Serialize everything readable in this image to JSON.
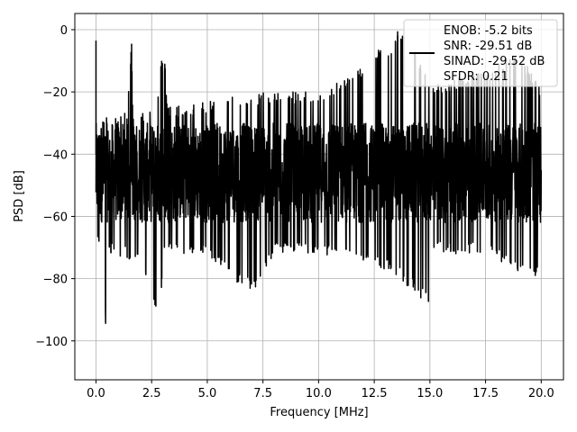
{
  "chart_data": {
    "type": "line",
    "title": "",
    "xlabel": "Frequency [MHz]",
    "ylabel": "PSD [dB]",
    "xlim": [
      -0.95,
      21.0
    ],
    "ylim": [
      -112.5,
      5.2
    ],
    "xticks": [
      0.0,
      2.5,
      5.0,
      7.5,
      10.0,
      12.5,
      15.0,
      17.5,
      20.0
    ],
    "xtick_labels": [
      "0.0",
      "2.5",
      "5.0",
      "7.5",
      "10.0",
      "12.5",
      "15.0",
      "17.5",
      "20.0"
    ],
    "yticks": [
      0,
      -20,
      -40,
      -60,
      -80,
      -100
    ],
    "ytick_labels": [
      "0",
      "−20",
      "−40",
      "−60",
      "−80",
      "−100"
    ],
    "grid": true,
    "legend": {
      "position": "top-right",
      "entries": [
        "ENOB: -5.2 bits",
        "SNR: -29.51 dB",
        "SINAD: -29.52 dB",
        "SFDR: 0.21"
      ]
    },
    "series": [
      {
        "color": "#000000",
        "upper_envelope": [
          [
            0.0,
            -3.5
          ],
          [
            0.1,
            -28
          ],
          [
            0.5,
            -27
          ],
          [
            1.0,
            -27
          ],
          [
            1.4,
            -26
          ],
          [
            1.45,
            -18
          ],
          [
            1.6,
            -4.5
          ],
          [
            1.65,
            -28
          ],
          [
            2.5,
            -25
          ],
          [
            2.8,
            -21
          ],
          [
            2.9,
            -10
          ],
          [
            3.1,
            -10
          ],
          [
            3.2,
            -25
          ],
          [
            5.0,
            -23
          ],
          [
            7.5,
            -20
          ],
          [
            10.0,
            -20
          ],
          [
            12.0,
            -12
          ],
          [
            12.5,
            -5
          ],
          [
            13.0,
            -8
          ],
          [
            13.5,
            -0.5
          ],
          [
            14.0,
            -1
          ],
          [
            15.0,
            -18
          ],
          [
            17.5,
            -13
          ],
          [
            19.0,
            -8
          ],
          [
            20.0,
            -18
          ]
        ],
        "lower_envelope": [
          [
            0.0,
            -67
          ],
          [
            0.3,
            -72
          ],
          [
            0.5,
            -107
          ],
          [
            0.6,
            -72
          ],
          [
            1.5,
            -74
          ],
          [
            2.0,
            -76
          ],
          [
            2.9,
            -96
          ],
          [
            3.0,
            -72
          ],
          [
            5.0,
            -72
          ],
          [
            6.3,
            -81
          ],
          [
            7.2,
            -84
          ],
          [
            8.0,
            -72
          ],
          [
            10.0,
            -72
          ],
          [
            13.3,
            -78
          ],
          [
            15.0,
            -89
          ],
          [
            15.2,
            -72
          ],
          [
            17.5,
            -72
          ],
          [
            19.8,
            -81
          ],
          [
            20.0,
            -70
          ]
        ],
        "band_top": -30,
        "band_bottom": -62,
        "peaks": [
          [
            0.0,
            -3.5
          ],
          [
            1.6,
            -4.5
          ],
          [
            2.95,
            -10
          ],
          [
            13.55,
            -0.5
          ]
        ]
      }
    ]
  }
}
